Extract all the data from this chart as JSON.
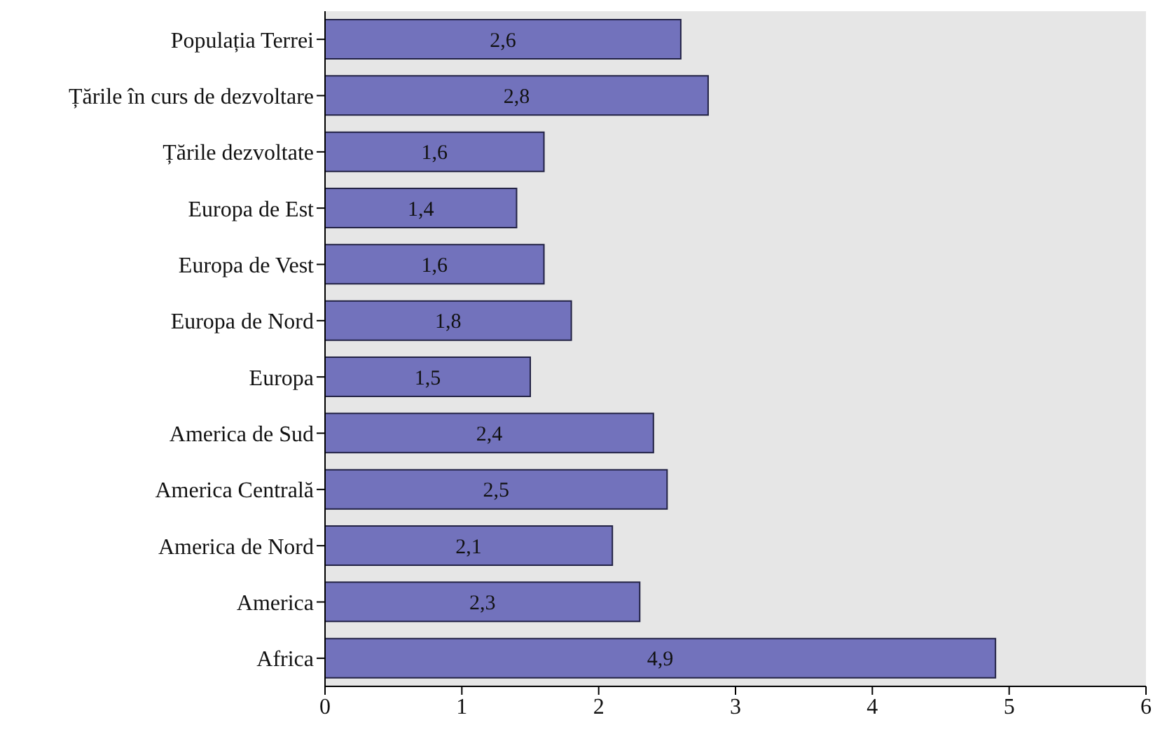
{
  "chart_data": {
    "type": "bar",
    "orientation": "horizontal",
    "categories": [
      "Populația Terrei",
      "Țările în curs de dezvoltare",
      "Țările dezvoltate",
      "Europa de Est",
      "Europa de Vest",
      "Europa de Nord",
      "Europa",
      "America de Sud",
      "America Centrală",
      "America de Nord",
      "America",
      "Africa"
    ],
    "values": [
      2.6,
      2.8,
      1.6,
      1.4,
      1.6,
      1.8,
      1.5,
      2.4,
      2.5,
      2.1,
      2.3,
      4.9
    ],
    "value_labels": [
      "2,6",
      "2,8",
      "1,6",
      "1,4",
      "1,6",
      "1,8",
      "1,5",
      "2,4",
      "2,5",
      "2,1",
      "2,3",
      "4,9"
    ],
    "color": "#7272bc",
    "xlim": [
      0,
      6
    ],
    "xticks": [
      0,
      1,
      2,
      3,
      4,
      5,
      6
    ],
    "grid": false
  }
}
